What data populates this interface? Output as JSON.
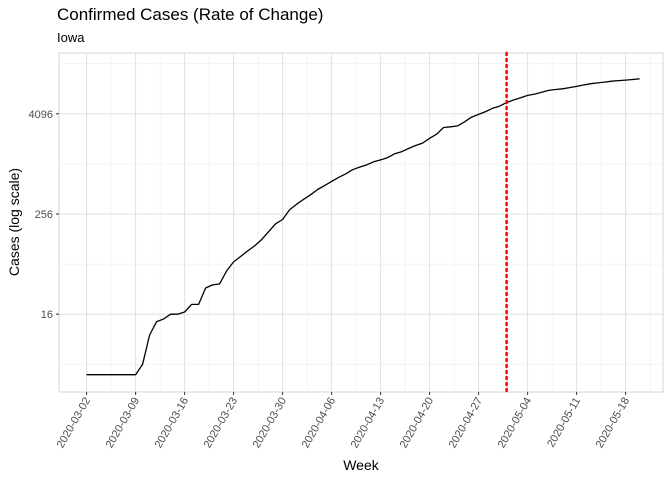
{
  "chart_data": {
    "type": "line",
    "title": "Confirmed Cases (Rate of Change)",
    "subtitle": "Iowa",
    "xlabel": "Week",
    "ylabel": "Cases (log scale)",
    "y_scale": "log2",
    "yticks": [
      16,
      256,
      4096
    ],
    "xticks": [
      "2020-03-02",
      "2020-03-09",
      "2020-03-16",
      "2020-03-23",
      "2020-03-30",
      "2020-04-06",
      "2020-04-13",
      "2020-04-20",
      "2020-04-27",
      "2020-05-04",
      "2020-05-11",
      "2020-05-18"
    ],
    "vline": {
      "x": "2020-05-01",
      "color": "#ff0000",
      "style": "dotted"
    },
    "line_color": "#000000",
    "grid": true,
    "series": [
      {
        "x": [
          "2020-03-02",
          "2020-03-03",
          "2020-03-04",
          "2020-03-05",
          "2020-03-06",
          "2020-03-07",
          "2020-03-08",
          "2020-03-09",
          "2020-03-10",
          "2020-03-11",
          "2020-03-12",
          "2020-03-13",
          "2020-03-14",
          "2020-03-15",
          "2020-03-16",
          "2020-03-17",
          "2020-03-18",
          "2020-03-19",
          "2020-03-20",
          "2020-03-21",
          "2020-03-22",
          "2020-03-23",
          "2020-03-24",
          "2020-03-25",
          "2020-03-26",
          "2020-03-27",
          "2020-03-28",
          "2020-03-29",
          "2020-03-30",
          "2020-03-31",
          "2020-04-01",
          "2020-04-02",
          "2020-04-03",
          "2020-04-04",
          "2020-04-05",
          "2020-04-06",
          "2020-04-07",
          "2020-04-08",
          "2020-04-09",
          "2020-04-10",
          "2020-04-11",
          "2020-04-12",
          "2020-04-13",
          "2020-04-14",
          "2020-04-15",
          "2020-04-16",
          "2020-04-17",
          "2020-04-18",
          "2020-04-19",
          "2020-04-20",
          "2020-04-21",
          "2020-04-22",
          "2020-04-23",
          "2020-04-24",
          "2020-04-25",
          "2020-04-26",
          "2020-04-27",
          "2020-04-28",
          "2020-04-29",
          "2020-04-30",
          "2020-05-01",
          "2020-05-02",
          "2020-05-03",
          "2020-05-04",
          "2020-05-05",
          "2020-05-06",
          "2020-05-07",
          "2020-05-08",
          "2020-05-09",
          "2020-05-10",
          "2020-05-11",
          "2020-05-12",
          "2020-05-13",
          "2020-05-14",
          "2020-05-15",
          "2020-05-16",
          "2020-05-17",
          "2020-05-18",
          "2020-05-19",
          "2020-05-20"
        ],
        "values": [
          3,
          3,
          3,
          3,
          3,
          3,
          3,
          3,
          4,
          9,
          13,
          14,
          16,
          16,
          17,
          21,
          21,
          33,
          36,
          37,
          53,
          68,
          79,
          92,
          106,
          126,
          157,
          195,
          220,
          288,
          336,
          385,
          436,
          504,
          561,
          631,
          705,
          777,
          871,
          938,
          997,
          1085,
          1145,
          1218,
          1353,
          1434,
          1569,
          1702,
          1821,
          2080,
          2332,
          2801,
          2857,
          2929,
          3284,
          3742,
          4023,
          4354,
          4763,
          5062,
          5577,
          6002,
          6376,
          6808,
          7070,
          7428,
          7822,
          8032,
          8182,
          8458,
          8734,
          9083,
          9408,
          9641,
          9860,
          10102,
          10264,
          10410,
          10575,
          10795
        ]
      }
    ]
  }
}
